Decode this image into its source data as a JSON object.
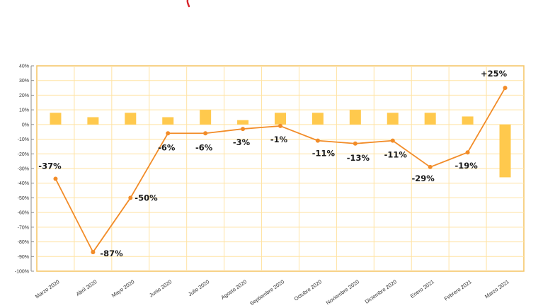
{
  "colors": {
    "bar": "#FFC94D",
    "line": "#F28C28",
    "grid": "#FFE3A3",
    "border": "#F5C76B",
    "mark": "#D8232A"
  },
  "chart_data": {
    "type": "bar+line",
    "categories": [
      "Marzo 2020",
      "Abril 2020",
      "Mayo 2020",
      "Junio 2020",
      "Julio 2020",
      "Agosto 2020",
      "Septiembre 2020",
      "Octubre 2020",
      "Noviembre 2020",
      "Diciembre 2020",
      "Enero 2021",
      "Febrero 2021",
      "Marzo 2021"
    ],
    "series": [
      {
        "kind": "bar",
        "values": [
          8,
          5,
          8,
          5,
          10,
          3,
          8,
          8,
          10,
          8,
          8,
          5.5,
          -36
        ]
      },
      {
        "kind": "line",
        "values": [
          -37,
          -87,
          -50,
          -6,
          -6,
          -3,
          -1,
          -11,
          -13,
          -11,
          -29,
          -19,
          25
        ],
        "labels": [
          "-37%",
          "-87%",
          "-50%",
          "-6%",
          "-6%",
          "-3%",
          "-1%",
          "-11%",
          "-13%",
          "-11%",
          "-29%",
          "-19%",
          "+25%"
        ]
      }
    ],
    "ylim": [
      -100,
      40
    ],
    "yticks": [
      "40%",
      "30%",
      "20%",
      "10%",
      "0%",
      "-10%",
      "-20%",
      "-30%",
      "-40%",
      "-50%",
      "-60%",
      "-70%",
      "-80%",
      "-90%",
      "-100%"
    ],
    "grid": true,
    "legend": "none"
  }
}
